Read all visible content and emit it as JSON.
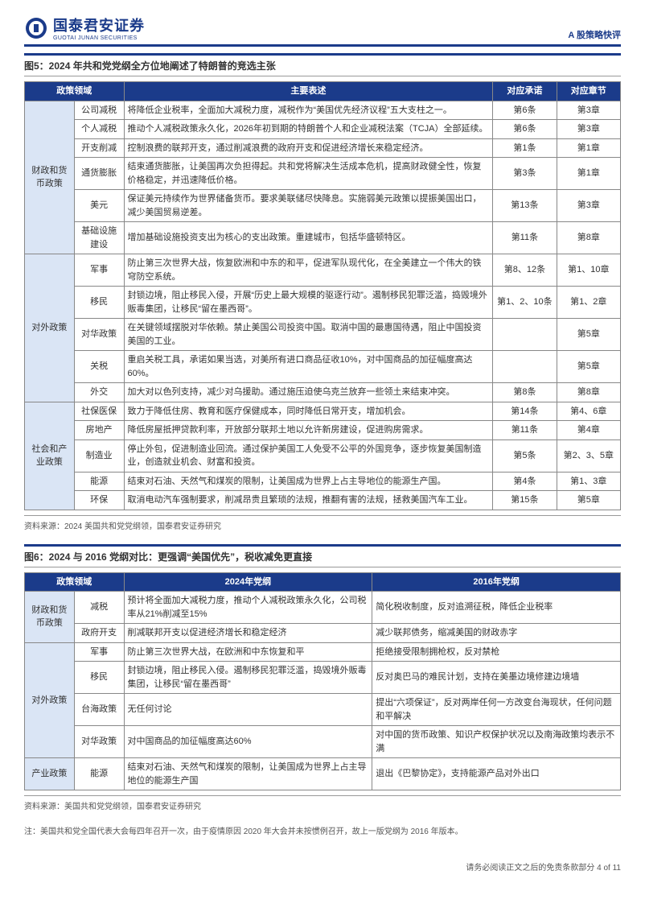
{
  "header": {
    "logo_cn": "国泰君安证券",
    "logo_en": "GUOTAI JUNAN SECURITIES",
    "right": "A 股策略快评"
  },
  "fig5": {
    "title": "图5：2024 年共和党党纲全方位地阐述了特朗普的竞选主张",
    "cols": [
      "政策领域",
      "",
      "主要表述",
      "对应承诺",
      "对应章节"
    ],
    "widths": [
      56,
      56,
      416,
      72,
      72
    ],
    "groups": [
      {
        "cat": "财政和货币政策",
        "rows": [
          {
            "sub": "公司减税",
            "desc": "将降低企业税率，全面加大减税力度，减税作为“美国优先经济议程”五大支柱之一。",
            "p": "第6条",
            "c": "第3章"
          },
          {
            "sub": "个人减税",
            "desc": "推动个人减税政策永久化，2026年初到期的特朗普个人和企业减税法案（TCJA）全部延续。",
            "p": "第6条",
            "c": "第3章"
          },
          {
            "sub": "开支削减",
            "desc": "控制浪费的联邦开支，通过削减浪费的政府开支和促进经济增长来稳定经济。",
            "p": "第1条",
            "c": "第1章"
          },
          {
            "sub": "通货膨胀",
            "desc": "结束通货膨胀，让美国再次负担得起。共和党将解决生活成本危机，提高财政健全性，恢复价格稳定，并迅速降低价格。",
            "p": "第3条",
            "c": "第1章"
          },
          {
            "sub": "美元",
            "desc": "保证美元持续作为世界储备货币。要求美联储尽快降息。实施弱美元政策以提振美国出口，减少美国贸易逆差。",
            "p": "第13条",
            "c": "第3章"
          },
          {
            "sub": "基础设施建设",
            "desc": "增加基础设施投资支出为核心的支出政策。重建城市，包括华盛顿特区。",
            "p": "第11条",
            "c": "第8章"
          }
        ]
      },
      {
        "cat": "对外政策",
        "rows": [
          {
            "sub": "军事",
            "desc": "防止第三次世界大战，恢复欧洲和中东的和平，促进军队现代化，在全美建立一个伟大的铁穹防空系统。",
            "p": "第8、12条",
            "c": "第1、10章"
          },
          {
            "sub": "移民",
            "desc": "封锁边境，阻止移民入侵，开展“历史上最大规模的驱逐行动”。遏制移民犯罪泛滥，捣毁境外贩毒集团，让移民“留在墨西哥”。",
            "p": "第1、2、10条",
            "c": "第1、2章"
          },
          {
            "sub": "对华政策",
            "desc": "在关键领域摆脱对华依赖。禁止美国公司投资中国。取消中国的最惠国待遇，阻止中国投资美国的工业。",
            "p": "",
            "c": "第5章"
          },
          {
            "sub": "关税",
            "desc": "重启关税工具，承诺如果当选，对美所有进口商品征收10%，对中国商品的加征幅度高达60%。",
            "p": "",
            "c": "第5章"
          },
          {
            "sub": "外交",
            "desc": "加大对以色列支持，减少对乌援助。通过施压迫使乌克兰放弃一些领土来结束冲突。",
            "p": "第8条",
            "c": "第8章"
          }
        ]
      },
      {
        "cat": "社会和产业政策",
        "rows": [
          {
            "sub": "社保医保",
            "desc": "致力于降低住房、教育和医疗保健成本，同时降低日常开支，增加机会。",
            "p": "第14条",
            "c": "第4、6章"
          },
          {
            "sub": "房地产",
            "desc": "降低房屋抵押贷款利率，开放部分联邦土地以允许新房建设，促进购房需求。",
            "p": "第11条",
            "c": "第4章"
          },
          {
            "sub": "制造业",
            "desc": "停止外包，促进制造业回流。通过保护美国工人免受不公平的外国竞争，逐步恢复美国制造业，创造就业机会、财富和投资。",
            "p": "第5条",
            "c": "第2、3、5章"
          },
          {
            "sub": "能源",
            "desc": "结束对石油、天然气和煤炭的限制，让美国成为世界上占主导地位的能源生产国。",
            "p": "第4条",
            "c": "第1、3章"
          },
          {
            "sub": "环保",
            "desc": "取消电动汽车强制要求，削减昂贵且繁琐的法规，推翻有害的法规，拯救美国汽车工业。",
            "p": "第15条",
            "c": "第5章"
          }
        ]
      }
    ],
    "source": "资料来源：2024 美国共和党党纲领，国泰君安证券研究"
  },
  "fig6": {
    "title": "图6：2024 与 2016 党纲对比：更强调“美国优先”，税收减免更直接",
    "cols": [
      "政策领域",
      "",
      "2024年党纲",
      "2016年党纲"
    ],
    "widths": [
      56,
      56,
      280,
      280
    ],
    "groups": [
      {
        "cat": "财政和货币政策",
        "rows": [
          {
            "sub": "减税",
            "a": "预计将全面加大减税力度，推动个人减税政策永久化，公司税率从21%削减至15%",
            "b": "简化税收制度，反对追溯征税，降低企业税率"
          },
          {
            "sub": "政府开支",
            "a": "削减联邦开支以促进经济增长和稳定经济",
            "b": "减少联邦债务，缩减美国的财政赤字"
          }
        ]
      },
      {
        "cat": "对外政策",
        "rows": [
          {
            "sub": "军事",
            "a": "防止第三次世界大战，在欧洲和中东恢复和平",
            "b": "拒绝接受限制拥枪权，反对禁枪"
          },
          {
            "sub": "移民",
            "a": "封锁边境，阻止移民入侵。遏制移民犯罪泛滥，捣毁境外贩毒集团，让移民“留在墨西哥”",
            "b": "反对奥巴马的难民计划，支持在美墨边境修建边境墙"
          },
          {
            "sub": "台海政策",
            "a": "无任何讨论",
            "b": "提出“六项保证”，反对两岸任何一方改变台海现状，任何问题和平解决"
          },
          {
            "sub": "对华政策",
            "a": "对中国商品的加征幅度高达60%",
            "b": "对中国的货币政策、知识产权保护状况以及南海政策均表示不满"
          }
        ]
      },
      {
        "cat": "产业政策",
        "rows": [
          {
            "sub": "能源",
            "a": "结束对石油、天然气和煤炭的限制，让美国成为世界上占主导地位的能源生产国",
            "b": "退出《巴黎协定》，支持能源产品对外出口"
          }
        ]
      }
    ],
    "source": "资料来源：美国共和党党纲领，国泰君安证券研究",
    "note": "注：美国共和党全国代表大会每四年召开一次，由于疫情原因 2020 年大会并未按惯例召开，故上一版党纲为 2016 年版本。"
  },
  "footer": "请务必阅读正文之后的免责条款部分 4 of 11"
}
